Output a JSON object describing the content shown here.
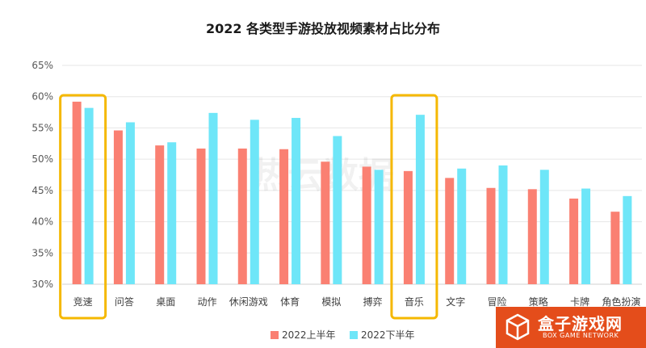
{
  "chart_data": {
    "type": "bar",
    "title": "2022 各类型手游投放视频素材占比分布",
    "categories": [
      "竞速",
      "问答",
      "桌面",
      "动作",
      "休闲游戏",
      "体育",
      "模拟",
      "搏弈",
      "音乐",
      "文字",
      "冒险",
      "策略",
      "卡牌",
      "角色扮演"
    ],
    "series": [
      {
        "name": "2022上半年",
        "color": "#fa8072",
        "values": [
          59.2,
          54.6,
          52.2,
          51.7,
          51.7,
          51.6,
          49.6,
          48.8,
          48.1,
          47.0,
          45.4,
          45.2,
          43.7,
          41.6
        ]
      },
      {
        "name": "2022下半年",
        "color": "#6ee6f8",
        "values": [
          58.2,
          55.9,
          52.7,
          57.4,
          56.3,
          56.6,
          53.7,
          48.3,
          57.1,
          48.5,
          49.0,
          48.3,
          45.3,
          44.1
        ]
      }
    ],
    "ylim": [
      30,
      65
    ],
    "yticks": [
      "30%",
      "35%",
      "40%",
      "45%",
      "50%",
      "55%",
      "60%",
      "65%"
    ],
    "grid": true,
    "legend_position": "bottom",
    "highlighted_categories": [
      "竞速",
      "音乐"
    ],
    "highlight_color": "#f5b800",
    "watermark_text": "热云数据"
  },
  "badge": {
    "name": "盒子游戏网",
    "subtitle": "BOX GAME NETWORK",
    "background_color": "#e44d1b",
    "icon": "cube-logo-icon"
  }
}
